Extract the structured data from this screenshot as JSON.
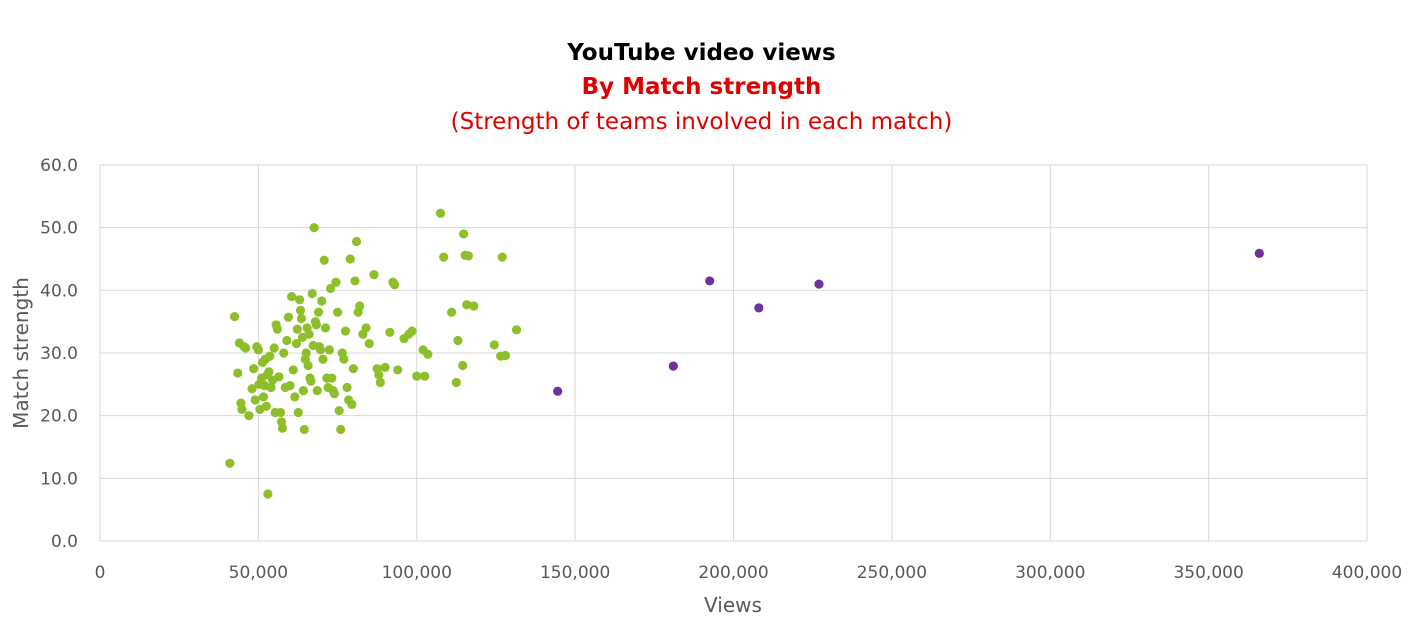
{
  "chart_data": {
    "type": "scatter",
    "title": "YouTube video views",
    "subtitle": "By Match strength",
    "subtitle2": "(Strength of teams involved in each match)",
    "xlabel": "Views",
    "ylabel": "Match strength",
    "xlim": [
      0,
      400000
    ],
    "ylim": [
      0,
      60
    ],
    "x_ticks": [
      "0",
      "50,000",
      "100,000",
      "150,000",
      "200,000",
      "250,000",
      "300,000",
      "350,000",
      "400,000"
    ],
    "y_ticks": [
      "0.0",
      "10.0",
      "20.0",
      "30.0",
      "40.0",
      "50.0",
      "60.0"
    ],
    "grid": true,
    "colors": {
      "title": "#000000",
      "subtitle": "#e00000",
      "green": "#8cbf2a",
      "purple": "#7030a0",
      "grid": "#d9d9d9",
      "axis_text": "#595959"
    },
    "series": [
      {
        "color": "#8cbf2a",
        "points": [
          [
            41000,
            12.4
          ],
          [
            42500,
            35.8
          ],
          [
            43500,
            26.8
          ],
          [
            44000,
            31.6
          ],
          [
            44500,
            22.0
          ],
          [
            44800,
            21.0
          ],
          [
            45500,
            31.0
          ],
          [
            46000,
            30.8
          ],
          [
            47000,
            20.0
          ],
          [
            48000,
            24.3
          ],
          [
            48500,
            27.5
          ],
          [
            49000,
            22.5
          ],
          [
            49500,
            31.0
          ],
          [
            50000,
            30.5
          ],
          [
            50200,
            25.0
          ],
          [
            50500,
            21.0
          ],
          [
            51000,
            26.0
          ],
          [
            51300,
            28.5
          ],
          [
            51600,
            23.0
          ],
          [
            52000,
            24.8
          ],
          [
            52200,
            29.0
          ],
          [
            52500,
            21.5
          ],
          [
            52800,
            26.5
          ],
          [
            53000,
            7.5
          ],
          [
            53300,
            27.0
          ],
          [
            53600,
            29.5
          ],
          [
            54000,
            24.5
          ],
          [
            54500,
            25.7
          ],
          [
            55000,
            30.8
          ],
          [
            55300,
            20.5
          ],
          [
            55600,
            34.5
          ],
          [
            56000,
            33.8
          ],
          [
            56500,
            26.2
          ],
          [
            57000,
            20.5
          ],
          [
            57300,
            19.0
          ],
          [
            57600,
            18.0
          ],
          [
            58000,
            30.0
          ],
          [
            58500,
            24.5
          ],
          [
            59000,
            32.0
          ],
          [
            59500,
            35.7
          ],
          [
            60000,
            24.8
          ],
          [
            60500,
            39.0
          ],
          [
            61000,
            27.3
          ],
          [
            61500,
            23.0
          ],
          [
            62000,
            31.5
          ],
          [
            62300,
            33.8
          ],
          [
            62600,
            20.5
          ],
          [
            63000,
            38.5
          ],
          [
            63300,
            36.8
          ],
          [
            63600,
            35.5
          ],
          [
            63900,
            32.5
          ],
          [
            64200,
            24.0
          ],
          [
            64500,
            17.8
          ],
          [
            64800,
            29.0
          ],
          [
            65100,
            30.0
          ],
          [
            65400,
            34.0
          ],
          [
            65700,
            28.0
          ],
          [
            66000,
            33.0
          ],
          [
            66300,
            26.0
          ],
          [
            66600,
            25.5
          ],
          [
            67000,
            39.5
          ],
          [
            67300,
            31.2
          ],
          [
            67600,
            50.0
          ],
          [
            68000,
            35.0
          ],
          [
            68300,
            34.5
          ],
          [
            68600,
            24.0
          ],
          [
            69000,
            36.5
          ],
          [
            69300,
            31.0
          ],
          [
            69600,
            30.5
          ],
          [
            70000,
            38.3
          ],
          [
            70400,
            29.0
          ],
          [
            70800,
            44.8
          ],
          [
            71200,
            34.0
          ],
          [
            71600,
            26.0
          ],
          [
            72000,
            24.5
          ],
          [
            72400,
            30.5
          ],
          [
            72800,
            40.3
          ],
          [
            73200,
            26.0
          ],
          [
            73600,
            24.0
          ],
          [
            74000,
            23.5
          ],
          [
            74500,
            41.3
          ],
          [
            75000,
            36.5
          ],
          [
            75500,
            20.8
          ],
          [
            76000,
            17.8
          ],
          [
            76500,
            30.0
          ],
          [
            77000,
            29.0
          ],
          [
            77500,
            33.5
          ],
          [
            78000,
            24.5
          ],
          [
            78500,
            22.5
          ],
          [
            79000,
            45.0
          ],
          [
            79500,
            21.8
          ],
          [
            80000,
            27.5
          ],
          [
            80500,
            41.5
          ],
          [
            81000,
            47.8
          ],
          [
            81500,
            36.5
          ],
          [
            82000,
            37.5
          ],
          [
            83000,
            33.0
          ],
          [
            84000,
            34.0
          ],
          [
            85000,
            31.5
          ],
          [
            86500,
            42.5
          ],
          [
            87500,
            27.5
          ],
          [
            88000,
            26.5
          ],
          [
            88500,
            25.3
          ],
          [
            90000,
            27.7
          ],
          [
            91500,
            33.3
          ],
          [
            92500,
            41.3
          ],
          [
            93000,
            40.9
          ],
          [
            94000,
            27.3
          ],
          [
            96000,
            32.3
          ],
          [
            97500,
            33.0
          ],
          [
            98500,
            33.5
          ],
          [
            100000,
            26.3
          ],
          [
            102000,
            30.5
          ],
          [
            102500,
            26.3
          ],
          [
            103500,
            29.8
          ],
          [
            107500,
            52.3
          ],
          [
            108500,
            45.3
          ],
          [
            111000,
            36.5
          ],
          [
            112500,
            25.3
          ],
          [
            113000,
            32.0
          ],
          [
            114500,
            28.0
          ],
          [
            114800,
            49.0
          ],
          [
            115300,
            45.6
          ],
          [
            115800,
            37.7
          ],
          [
            116300,
            45.5
          ],
          [
            118000,
            37.5
          ],
          [
            124500,
            31.3
          ],
          [
            126500,
            29.5
          ],
          [
            127000,
            45.3
          ],
          [
            128000,
            29.6
          ],
          [
            131500,
            33.7
          ]
        ]
      },
      {
        "color": "#7030a0",
        "points": [
          [
            144500,
            23.9
          ],
          [
            181000,
            27.9
          ],
          [
            192500,
            41.5
          ],
          [
            208000,
            37.2
          ],
          [
            227000,
            41.0
          ],
          [
            366000,
            45.9
          ]
        ]
      }
    ]
  }
}
